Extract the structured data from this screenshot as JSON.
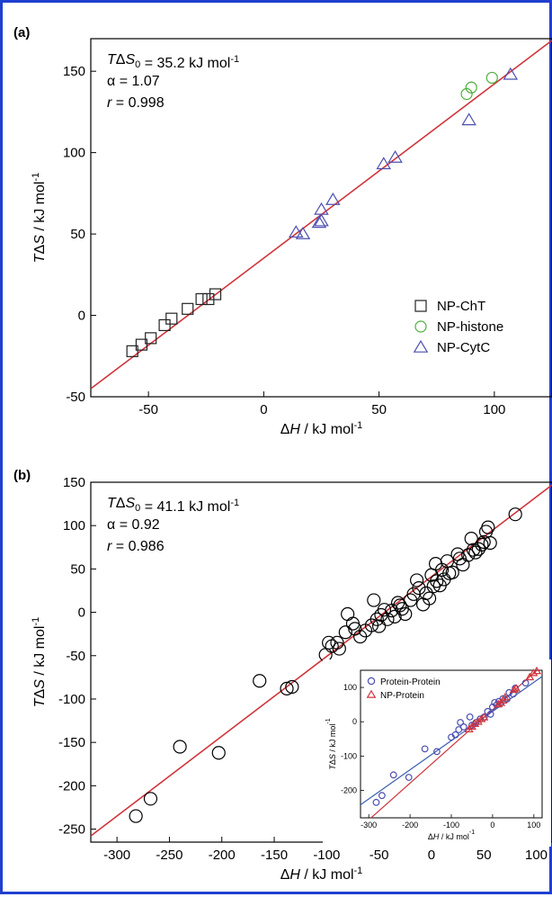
{
  "colors": {
    "border": "#1f3fd0",
    "fit_line": "#d0353c",
    "chymotrypsin": "#222222",
    "histone": "#4caf3c",
    "cytc": "#4b4fb0",
    "protein_protein": "#4b4fb0",
    "np_protein": "#d0353c",
    "inset_fit_blue": "#3a5fb0"
  },
  "chart_data": [
    {
      "type": "scatter",
      "panel_label": "(a)",
      "xlabel": "ΔH / kJ mol-1",
      "ylabel": "TΔS / kJ mol-1",
      "xlim": [
        -75,
        125
      ],
      "ylim": [
        -50,
        170
      ],
      "xticks": [
        -50,
        0,
        50,
        100
      ],
      "yticks": [
        -50,
        0,
        50,
        100,
        150
      ],
      "xtick_labels": [
        "-50",
        "0",
        "50",
        "100"
      ],
      "ytick_labels": [
        "-50",
        "0",
        "50",
        "100",
        "150"
      ],
      "annotations": [
        "TΔS0 = 35.2 kJ mol-1",
        "α = 1.07",
        "r = 0.998"
      ],
      "fit": {
        "slope": 1.07,
        "intercept": 35.2
      },
      "legend_position": "bottom-right",
      "series": [
        {
          "name": "NP-ChT",
          "marker": "square",
          "points": [
            [
              -57,
              -22
            ],
            [
              -53,
              -18
            ],
            [
              -49,
              -14
            ],
            [
              -43,
              -6
            ],
            [
              -40,
              -2
            ],
            [
              -33,
              4
            ],
            [
              -27,
              10
            ],
            [
              -24,
              10
            ],
            [
              -21,
              13
            ]
          ]
        },
        {
          "name": "NP-histone",
          "marker": "circle",
          "points": [
            [
              88,
              136
            ],
            [
              90,
              140
            ],
            [
              99,
              146
            ]
          ]
        },
        {
          "name": "NP-CytC",
          "marker": "triangle",
          "points": [
            [
              14,
              51
            ],
            [
              17,
              50
            ],
            [
              24,
              57
            ],
            [
              25,
              58
            ],
            [
              25,
              65
            ],
            [
              30,
              71
            ],
            [
              52,
              93
            ],
            [
              57,
              97
            ],
            [
              89,
              120
            ],
            [
              107,
              148
            ]
          ]
        }
      ]
    },
    {
      "type": "scatter",
      "panel_label": "(b)",
      "xlabel": "ΔH / kJ mol-1",
      "ylabel": "TΔS / kJ mol-1",
      "xlim": [
        -325,
        115
      ],
      "ylim": [
        -265,
        150
      ],
      "xticks": [
        -300,
        -250,
        -200,
        -150,
        -100,
        -50,
        0,
        50,
        100
      ],
      "yticks": [
        -250,
        -200,
        -150,
        -100,
        -50,
        0,
        50,
        100,
        150
      ],
      "xtick_labels": [
        "-300",
        "-250",
        "-200",
        "-150",
        "-100",
        "-50",
        "0",
        "50",
        "100"
      ],
      "ytick_labels": [
        "-250",
        "-200",
        "-150",
        "-100",
        "-50",
        "0",
        "50",
        "100",
        "150"
      ],
      "annotations": [
        "TΔS0 = 41.1 kJ mol-1",
        "α = 0.92",
        "r = 0.986"
      ],
      "fit": {
        "slope": 0.92,
        "intercept": 41.1
      },
      "series": [
        {
          "name": "",
          "marker": "circle",
          "points": [
            [
              -282,
              -235
            ],
            [
              -268,
              -215
            ],
            [
              -240,
              -155
            ],
            [
              -203,
              -162
            ],
            [
              -164,
              -79
            ],
            [
              -138,
              -88
            ],
            [
              -133,
              -86
            ],
            [
              -101,
              -49
            ],
            [
              -98,
              -35
            ],
            [
              -95,
              -39
            ],
            [
              -90,
              -35
            ],
            [
              -88,
              -42
            ],
            [
              -82,
              -23
            ],
            [
              -80,
              -2
            ],
            [
              -75,
              -13
            ],
            [
              -73,
              -19
            ],
            [
              -68,
              -28
            ],
            [
              -63,
              -21
            ],
            [
              -57,
              -15
            ],
            [
              -55,
              14
            ],
            [
              -52,
              -8
            ],
            [
              -50,
              -16
            ],
            [
              -48,
              -3
            ],
            [
              -45,
              3
            ],
            [
              -42,
              -8
            ],
            [
              -38,
              2
            ],
            [
              -35,
              -5
            ],
            [
              -32,
              11
            ],
            [
              -30,
              8
            ],
            [
              -28,
              4
            ],
            [
              -25,
              -2
            ],
            [
              -20,
              14
            ],
            [
              -17,
              21
            ],
            [
              -14,
              37
            ],
            [
              -12,
              28
            ],
            [
              -8,
              9
            ],
            [
              -5,
              22
            ],
            [
              -2,
              16
            ],
            [
              0,
              43
            ],
            [
              2,
              30
            ],
            [
              4,
              56
            ],
            [
              5,
              36
            ],
            [
              8,
              31
            ],
            [
              10,
              49
            ],
            [
              12,
              38
            ],
            [
              15,
              59
            ],
            [
              17,
              45
            ],
            [
              20,
              46
            ],
            [
              25,
              67
            ],
            [
              27,
              62
            ],
            [
              30,
              55
            ],
            [
              35,
              66
            ],
            [
              38,
              85
            ],
            [
              40,
              72
            ],
            [
              42,
              69
            ],
            [
              45,
              73
            ],
            [
              48,
              78
            ],
            [
              50,
              81
            ],
            [
              52,
              93
            ],
            [
              54,
              98
            ],
            [
              56,
              80
            ],
            [
              80,
              113
            ]
          ]
        }
      ],
      "inset": {
        "xlabel": "ΔH / kJ mol-1",
        "ylabel": "TΔS / kJ mol-1",
        "xlim": [
          -320,
          120
        ],
        "ylim": [
          -280,
          150
        ],
        "xticks": [
          -300,
          -200,
          -100,
          0,
          100
        ],
        "yticks": [
          -200,
          -100,
          0,
          100
        ],
        "xtick_labels": [
          "-300",
          "-200",
          "-100",
          "0",
          "100"
        ],
        "ytick_labels": [
          "-200",
          "-100",
          "0",
          "100"
        ],
        "fits": [
          {
            "series": "Protein-Protein",
            "slope": 0.85,
            "intercept": 30
          },
          {
            "series": "NP-Protein",
            "slope": 1.07,
            "intercept": 35
          }
        ],
        "series": [
          {
            "name": "Protein-Protein",
            "marker": "circle",
            "points": [
              [
                -282,
                -235
              ],
              [
                -268,
                -215
              ],
              [
                -240,
                -155
              ],
              [
                -203,
                -162
              ],
              [
                -164,
                -79
              ],
              [
                -135,
                -87
              ],
              [
                -100,
                -45
              ],
              [
                -90,
                -38
              ],
              [
                -82,
                -23
              ],
              [
                -78,
                -2
              ],
              [
                -70,
                -15
              ],
              [
                -55,
                14
              ],
              [
                -50,
                -10
              ],
              [
                -40,
                -2
              ],
              [
                -30,
                8
              ],
              [
                -20,
                14
              ],
              [
                -12,
                30
              ],
              [
                -5,
                22
              ],
              [
                0,
                43
              ],
              [
                5,
                56
              ],
              [
                10,
                49
              ],
              [
                15,
                59
              ],
              [
                25,
                67
              ],
              [
                35,
                66
              ],
              [
                40,
                85
              ],
              [
                50,
                81
              ],
              [
                55,
                98
              ],
              [
                80,
                113
              ]
            ]
          },
          {
            "name": "NP-Protein",
            "marker": "triangle",
            "points": [
              [
                -57,
                -22
              ],
              [
                -50,
                -14
              ],
              [
                -43,
                -6
              ],
              [
                -35,
                0
              ],
              [
                -27,
                8
              ],
              [
                -21,
                13
              ],
              [
                14,
                51
              ],
              [
                20,
                55
              ],
              [
                25,
                62
              ],
              [
                30,
                71
              ],
              [
                52,
                93
              ],
              [
                57,
                97
              ],
              [
                90,
                130
              ],
              [
                99,
                142
              ],
              [
                107,
                148
              ]
            ]
          }
        ]
      }
    }
  ]
}
